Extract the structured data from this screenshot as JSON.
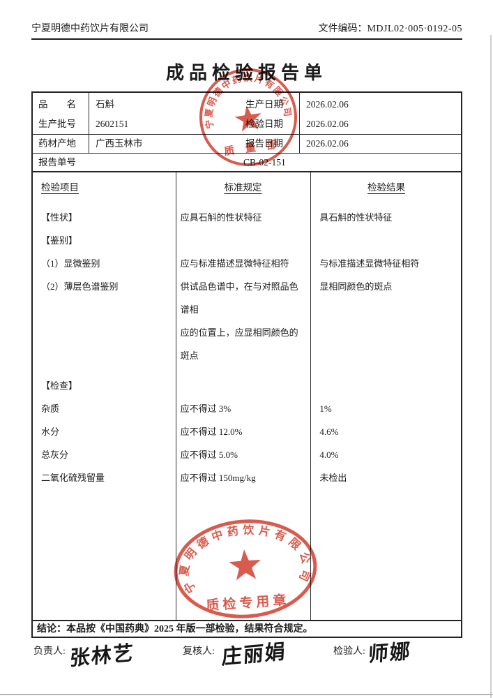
{
  "header": {
    "company": "宁夏明德中药饮片有限公司",
    "doc_code_label": "文件编码：",
    "doc_code": "MDJL02·005·0192-05"
  },
  "title": "成品检验报告单",
  "info": {
    "product_label": "品　　名",
    "product": "石斛",
    "batch_label": "生产批号",
    "batch": "2602151",
    "origin_label": "药材产地",
    "origin": "广西玉林市",
    "prod_date_label": "生产日期",
    "prod_date": "2026.02.06",
    "test_date_label": "检验日期",
    "test_date": "2026.02.06",
    "report_date_label": "报告日期",
    "report_date": "2026.02.06",
    "report_no_label": "报告单号",
    "report_no": "CB-02-151"
  },
  "inspection": {
    "col_item": "检验项目",
    "col_standard": "标准规定",
    "col_result": "检验结果",
    "rows": [
      {
        "item": "【性状】",
        "standard": "应具石斛的性状特征",
        "result": "具石斛的性状特征"
      },
      {
        "item": "【鉴别】",
        "standard": "",
        "result": ""
      },
      {
        "item": "（1）显微鉴别",
        "standard": "应与标准描述显微特征相符",
        "result": "与标准描述显微特征相符"
      },
      {
        "item": "（2）薄层色谱鉴别",
        "standard": "供试品色谱中，在与对照品色谱相\n应的位置上，应显相同颜色的斑点",
        "result": "显相同颜色的斑点"
      },
      {
        "item": "【检查】",
        "standard": "",
        "result": "",
        "gap_before": true
      },
      {
        "item": "杂质",
        "standard": "应不得过 3%",
        "result": "1%"
      },
      {
        "item": "水分",
        "standard": "应不得过 12.0%",
        "result": "4.6%"
      },
      {
        "item": "总灰分",
        "standard": "应不得过 5.0%",
        "result": "4.0%"
      },
      {
        "item": "二氧化硫残留量",
        "standard": "应不得过 150mg/kg",
        "result": "未检出"
      }
    ]
  },
  "conclusion": "结论：本品按《中国药典》2025 年版一部检验，结果符合规定。",
  "signatures": {
    "responsible_label": "负责人:",
    "responsible_name": "张林艺",
    "reviewer_label": "复核人:",
    "reviewer_name": "庄丽娟",
    "inspector_label": "检验人:",
    "inspector_name": "师娜"
  },
  "stamps": {
    "company_arc": "宁夏明德中药饮片有限公司",
    "dept_stamp_text": "质 量 部",
    "qc_stamp_text": "质检专用章",
    "color": "#d23b2c"
  }
}
